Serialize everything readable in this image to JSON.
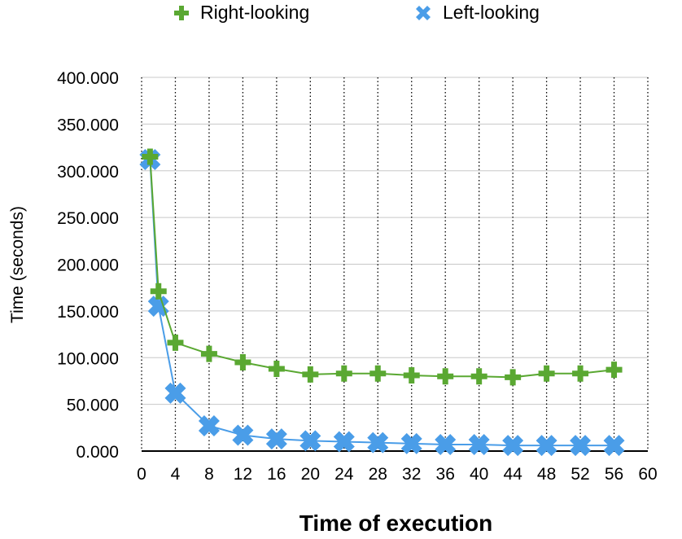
{
  "chart_data": {
    "type": "line",
    "xlabel": "Time of execution",
    "ylabel": "Time (seconds)",
    "xlim": [
      0,
      60
    ],
    "ylim": [
      0,
      400
    ],
    "xticks": [
      "0",
      "4",
      "8",
      "12",
      "16",
      "20",
      "24",
      "28",
      "32",
      "36",
      "40",
      "44",
      "48",
      "52",
      "56",
      "60"
    ],
    "yticks": [
      "0.000",
      "50.000",
      "100.000",
      "150.000",
      "200.000",
      "250.000",
      "300.000",
      "350.000",
      "400.000"
    ],
    "grid": {
      "vertical": "dotted",
      "horizontal": "solid"
    },
    "legend_placement": "top",
    "series": [
      {
        "name": "Right-looking",
        "color": "#5aa832",
        "marker": "plus",
        "points": [
          [
            1,
            315
          ],
          [
            2,
            171
          ],
          [
            4,
            116
          ],
          [
            8,
            104
          ],
          [
            12,
            95
          ],
          [
            16,
            88
          ],
          [
            20,
            82
          ],
          [
            24,
            83
          ],
          [
            28,
            83
          ],
          [
            32,
            81
          ],
          [
            36,
            80
          ],
          [
            40,
            80
          ],
          [
            44,
            79
          ],
          [
            48,
            83
          ],
          [
            52,
            83
          ],
          [
            56,
            87
          ]
        ]
      },
      {
        "name": "Left-looking",
        "color": "#4a9de8",
        "marker": "x",
        "points": [
          [
            1,
            312
          ],
          [
            2,
            155
          ],
          [
            4,
            62
          ],
          [
            8,
            27
          ],
          [
            12,
            17
          ],
          [
            16,
            13
          ],
          [
            20,
            11
          ],
          [
            24,
            10
          ],
          [
            28,
            9
          ],
          [
            32,
            8
          ],
          [
            36,
            7
          ],
          [
            40,
            7
          ],
          [
            44,
            6
          ],
          [
            48,
            6
          ],
          [
            52,
            6
          ],
          [
            56,
            6
          ]
        ]
      }
    ]
  }
}
